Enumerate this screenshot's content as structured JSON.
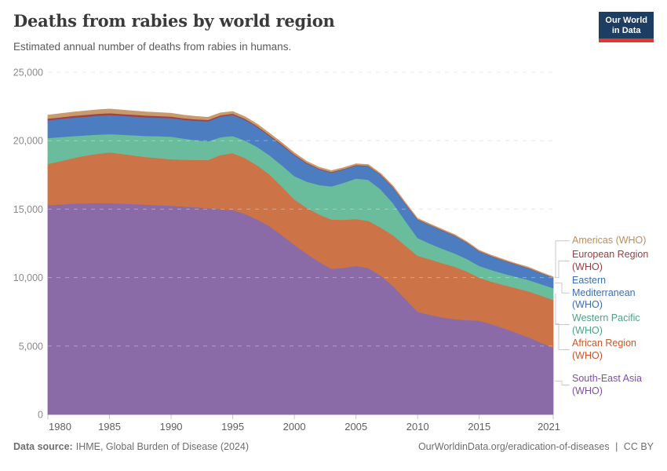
{
  "header": {
    "title": "Deaths from rabies by world region",
    "subtitle": "Estimated annual number of deaths from rabies in humans."
  },
  "logo": {
    "line1": "Our World",
    "line2": "in Data",
    "bg": "#1d3d63",
    "stripe": "#dc3a2d"
  },
  "footer": {
    "source_label": "Data source:",
    "source_value": "IHME, Global Burden of Disease (2024)",
    "link": "OurWorldinData.org/eradication-of-diseases",
    "divider": "|",
    "license": "CC BY"
  },
  "chart_data": {
    "type": "area",
    "stacked": true,
    "title": "Deaths from rabies by world region",
    "xlabel": "",
    "ylabel": "",
    "xlim": [
      1980,
      2021
    ],
    "ylim": [
      0,
      25000
    ],
    "grid": "horizontal-dashed",
    "legend_position": "right",
    "x_ticks": [
      1980,
      1985,
      1990,
      1995,
      2000,
      2005,
      2010,
      2015,
      2021
    ],
    "y_ticks": [
      0,
      5000,
      10000,
      15000,
      20000,
      25000
    ],
    "x": [
      1980,
      1981,
      1982,
      1983,
      1984,
      1985,
      1986,
      1987,
      1988,
      1989,
      1990,
      1991,
      1992,
      1993,
      1994,
      1995,
      1996,
      1997,
      1998,
      1999,
      2000,
      2001,
      2002,
      2003,
      2004,
      2005,
      2006,
      2007,
      2008,
      2009,
      2010,
      2011,
      2012,
      2013,
      2014,
      2015,
      2016,
      2017,
      2018,
      2019,
      2020,
      2021
    ],
    "series": [
      {
        "id": "south-east-asia",
        "name": "South-East Asia (WHO)",
        "color": "#8A6BA8",
        "label_color": "#7D4FA8",
        "values": [
          15300,
          15350,
          15400,
          15430,
          15450,
          15450,
          15420,
          15380,
          15330,
          15290,
          15250,
          15200,
          15150,
          15080,
          15010,
          14950,
          14650,
          14250,
          13750,
          13100,
          12400,
          11750,
          11150,
          10650,
          10720,
          10860,
          10700,
          10150,
          9400,
          8450,
          7500,
          7280,
          7100,
          6980,
          6900,
          6860,
          6600,
          6300,
          5980,
          5650,
          5250,
          4880
        ]
      },
      {
        "id": "african-region",
        "name": "African Region (WHO)",
        "color": "#CD7348",
        "label_color": "#C4582C",
        "values": [
          3000,
          3160,
          3320,
          3480,
          3600,
          3700,
          3620,
          3540,
          3480,
          3440,
          3400,
          3420,
          3450,
          3520,
          3950,
          4150,
          4080,
          3950,
          3780,
          3550,
          3310,
          3360,
          3470,
          3600,
          3510,
          3430,
          3450,
          3520,
          3700,
          3900,
          4100,
          4060,
          3960,
          3820,
          3550,
          3140,
          3110,
          3160,
          3250,
          3350,
          3440,
          3500
        ]
      },
      {
        "id": "western-pacific",
        "name": "Western Pacific (WHO)",
        "color": "#69BD9C",
        "label_color": "#4FA183",
        "values": [
          1900,
          1760,
          1620,
          1480,
          1400,
          1340,
          1400,
          1480,
          1540,
          1600,
          1650,
          1540,
          1440,
          1360,
          1300,
          1250,
          1290,
          1340,
          1400,
          1550,
          1710,
          1910,
          2150,
          2420,
          2700,
          2950,
          3000,
          2780,
          2350,
          1800,
          1300,
          1150,
          1050,
          975,
          915,
          860,
          845,
          835,
          830,
          835,
          840,
          850
        ]
      },
      {
        "id": "eastern-mediterranean",
        "name": "Eastern Mediterranean (WHO)",
        "color": "#4D7DC1",
        "label_color": "#3C6FB1",
        "values": [
          1300,
          1320,
          1345,
          1365,
          1380,
          1390,
          1382,
          1372,
          1362,
          1356,
          1350,
          1385,
          1425,
          1465,
          1510,
          1550,
          1510,
          1460,
          1410,
          1470,
          1530,
          1320,
          1150,
          1000,
          975,
          950,
          985,
          1050,
          1150,
          1250,
          1330,
          1340,
          1330,
          1290,
          1180,
          1050,
          1000,
          950,
          900,
          855,
          805,
          760
        ]
      },
      {
        "id": "european-region",
        "name": "European Region (WHO)",
        "color": "#A14345",
        "label_color": "#9A3E41",
        "values": [
          120,
          126,
          131,
          136,
          138,
          140,
          136,
          132,
          128,
          124,
          120,
          113,
          106,
          99,
          92,
          85,
          80,
          75,
          70,
          65,
          60,
          56,
          52,
          49,
          45,
          42,
          40,
          39,
          37,
          36,
          35,
          34,
          32,
          31,
          29,
          28,
          27,
          25,
          24,
          23,
          21,
          20
        ]
      },
      {
        "id": "americas",
        "name": "Americas (WHO)",
        "color": "#C99A6C",
        "label_color": "#BC8E5A",
        "values": [
          250,
          258,
          266,
          275,
          283,
          290,
          278,
          266,
          254,
          242,
          230,
          214,
          198,
          182,
          166,
          150,
          140,
          130,
          120,
          110,
          100,
          96,
          92,
          88,
          84,
          80,
          76,
          72,
          68,
          64,
          60,
          58,
          56,
          54,
          52,
          50,
          48,
          46,
          44,
          43,
          41,
          40
        ]
      }
    ],
    "legend": [
      {
        "series": "americas",
        "lines": [
          "Americas (WHO)"
        ]
      },
      {
        "series": "european-region",
        "lines": [
          "European Region",
          "(WHO)"
        ]
      },
      {
        "series": "eastern-mediterranean",
        "lines": [
          "Eastern",
          "Mediterranean",
          "(WHO)"
        ]
      },
      {
        "series": "western-pacific",
        "lines": [
          "Western Pacific",
          "(WHO)"
        ]
      },
      {
        "series": "african-region",
        "lines": [
          "African Region",
          "(WHO)"
        ]
      },
      {
        "series": "south-east-asia",
        "lines": [
          "South-East Asia",
          "(WHO)"
        ]
      }
    ]
  }
}
